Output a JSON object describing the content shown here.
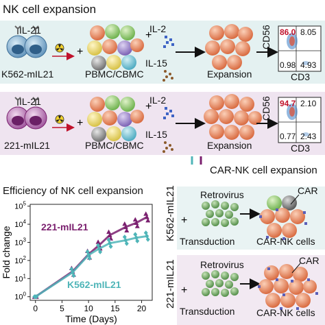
{
  "panel1": {
    "title": "NK cell expansion",
    "feeder_cytokine": "IL-21",
    "feeder_label": "K562-mIL21",
    "pbmc_label": "PBMC/CBMC",
    "cytokine_a": "IL-2",
    "cytokine_b": "IL-15",
    "expansion_label": "Expansion",
    "flow": {
      "ylabel": "CD56",
      "xlabel": "CD3",
      "tl": "86.0",
      "tr": "8.05",
      "bl": "0.98",
      "br": "4.93"
    }
  },
  "panel2": {
    "feeder_cytokine": "IL-21",
    "feeder_label": "221-mIL21",
    "pbmc_label": "PBMC/CBMC",
    "cytokine_a": "IL-2",
    "cytokine_b": "IL-15",
    "expansion_label": "Expansion",
    "flow": {
      "ylabel": "CD56",
      "xlabel": "CD3",
      "tl": "94.7",
      "tr": "2.10",
      "bl": "0.77",
      "br": "2.43"
    }
  },
  "car_title": "CAR-NK cell expansion",
  "chart_title": "Efficiency of NK cell expansion",
  "chart_data": {
    "type": "line",
    "title": "Efficiency of NK cell expansion",
    "xlabel": "Time (Days)",
    "ylabel": "Fold change",
    "x_ticks": [
      0,
      5,
      10,
      15,
      20
    ],
    "y_ticks": [
      "10^0",
      "10^1",
      "10^2",
      "10^3",
      "10^4",
      "10^5"
    ],
    "xlim": [
      -1,
      22
    ],
    "ylim_log10": [
      -0.2,
      5.1
    ],
    "series": [
      {
        "name": "221-mIL21",
        "color": "#7a1f6e",
        "marker": "triangle",
        "x": [
          0,
          7,
          10,
          12,
          14,
          17,
          19,
          21
        ],
        "values": [
          1,
          25,
          220,
          700,
          2500,
          7000,
          12000,
          25000
        ]
      },
      {
        "name": "K562-mIL21",
        "color": "#4fb5b8",
        "marker": "diamond",
        "x": [
          0,
          7,
          10,
          12,
          14,
          17,
          19,
          21
        ],
        "values": [
          1,
          22,
          200,
          450,
          900,
          1300,
          1800,
          2200
        ]
      }
    ]
  },
  "car_panel1": {
    "side_label": "K562-mIL21",
    "virus_label": "Retrovirus",
    "transduction_label": "Transduction",
    "car_label": "CAR",
    "result_label": "CAR-NK cells"
  },
  "car_panel2": {
    "side_label": "221-mIL21",
    "virus_label": "Retrovirus",
    "transduction_label": "Transduction",
    "car_label": "CAR",
    "result_label": "CAR-NK cells"
  },
  "colors": {
    "panel1_bg": "#e4f1f1",
    "panel2_bg": "#efe4f0",
    "car1_bg": "#e9f3f3",
    "car2_bg": "#f2e9f2",
    "teal": "#4fb5b8",
    "purple": "#7a1f6e",
    "nk_orange": "#e8835a",
    "red_value": "#c0122c"
  }
}
